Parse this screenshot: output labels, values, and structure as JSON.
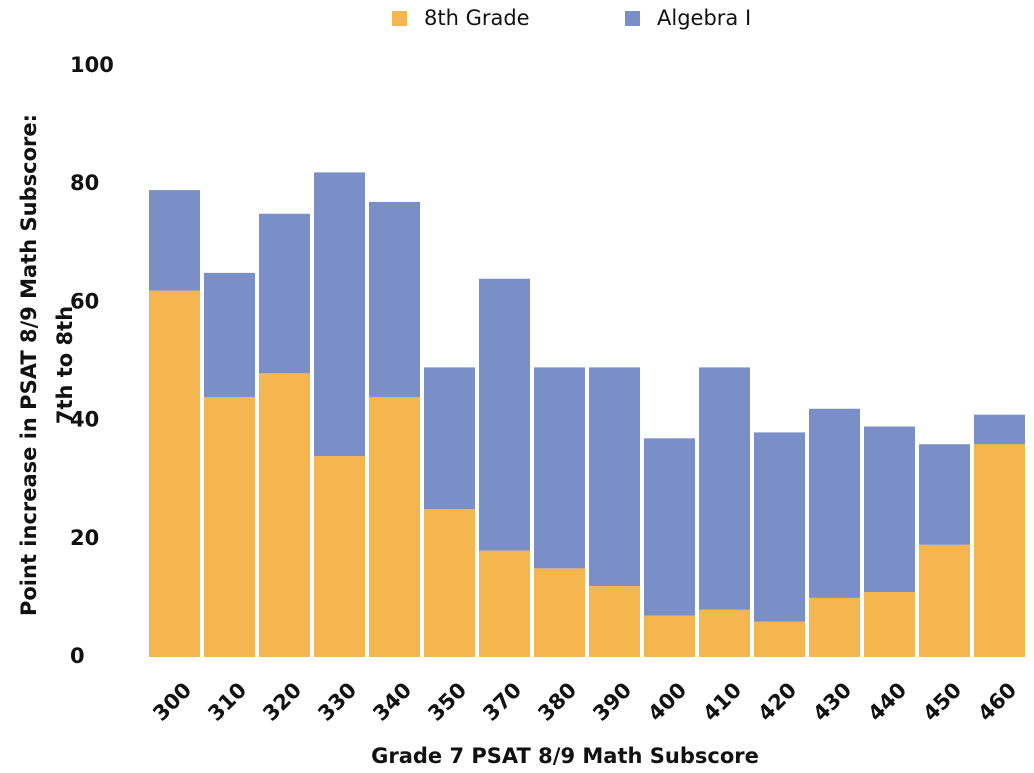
{
  "chart_data": {
    "type": "stacked_bar",
    "x_label": "Grade 7 PSAT 8/9 Math Subscore",
    "y_label": [
      "Point increase in PSAT 8/9 Math Subscore:",
      "7th to 8th"
    ],
    "categories": [
      "300",
      "310",
      "320",
      "330",
      "340",
      "350",
      "370",
      "380",
      "390",
      "400",
      "410",
      "420",
      "430",
      "440",
      "450",
      "460"
    ],
    "series": [
      {
        "name": "8th Grade",
        "color": "#f5b64f",
        "values": [
          62,
          44,
          48,
          34,
          44,
          25,
          18,
          15,
          12,
          7,
          8,
          6,
          10,
          11,
          19,
          36
        ]
      },
      {
        "name": "Algebra I",
        "color": "#7a8ec8",
        "values": [
          17,
          21,
          27,
          48,
          33,
          24,
          46,
          34,
          37,
          30,
          41,
          32,
          32,
          28,
          17,
          5
        ]
      }
    ],
    "ylim": [
      0,
      100
    ],
    "yticks": [
      0,
      20,
      40,
      60,
      80,
      100
    ],
    "grid": false,
    "legend": "top"
  }
}
